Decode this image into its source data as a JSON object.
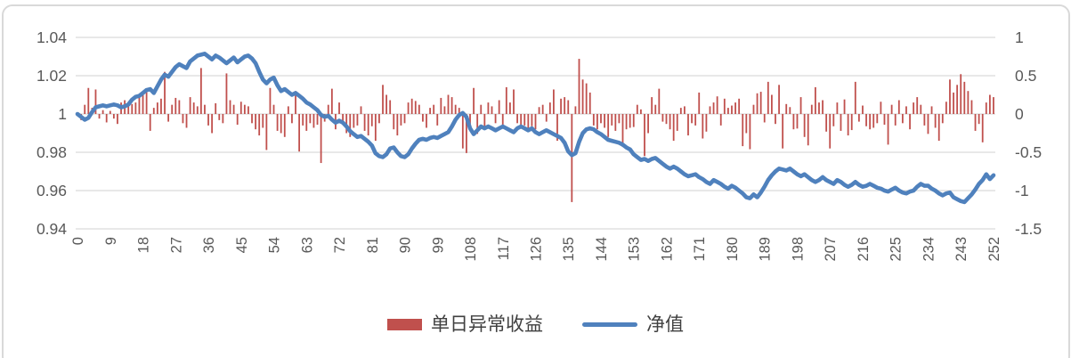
{
  "frame_color": "#d9d9d9",
  "grid_color": "#d9d9d9",
  "axis_text_color": "#595959",
  "chart_data": {
    "type": "combo",
    "title": "",
    "legend_position": "bottom",
    "grid": true,
    "x": {
      "count": 253,
      "tick_step": 9,
      "tick_labels": [
        "0",
        "9",
        "18",
        "27",
        "36",
        "45",
        "54",
        "63",
        "72",
        "81",
        "90",
        "99",
        "108",
        "117",
        "126",
        "135",
        "144",
        "153",
        "162",
        "171",
        "180",
        "189",
        "198",
        "207",
        "216",
        "225",
        "234",
        "243",
        "252"
      ]
    },
    "left_axis": {
      "min": 0.94,
      "max": 1.04,
      "ticks": [
        {
          "label": "1.04",
          "value": 1.04
        },
        {
          "label": "1.02",
          "value": 1.02
        },
        {
          "label": "1",
          "value": 1.0
        },
        {
          "label": "0.98",
          "value": 0.98
        },
        {
          "label": "0.96",
          "value": 0.96
        },
        {
          "label": "0.94",
          "value": 0.94
        }
      ]
    },
    "right_axis": {
      "min": -1.5,
      "max": 1.0,
      "ticks": [
        {
          "label": "1",
          "value": 1.0
        },
        {
          "label": "0.5",
          "value": 0.5
        },
        {
          "label": "0",
          "value": 0.0
        },
        {
          "label": "-0.5",
          "value": -0.5
        },
        {
          "label": "-1",
          "value": -1.0
        },
        {
          "label": "-1.5",
          "value": -1.5
        }
      ]
    },
    "series": [
      {
        "name": "单日异常收益",
        "type": "bar",
        "axis": "right",
        "color": "#C0504D",
        "values": [
          0.02,
          -0.08,
          0.12,
          0.34,
          0.08,
          0.32,
          -0.06,
          0.05,
          -0.11,
          0.04,
          -0.06,
          -0.13,
          0.15,
          0.18,
          0.1,
          0.13,
          0.15,
          0.24,
          0.28,
          0.3,
          -0.22,
          0.08,
          0.15,
          0.2,
          0.55,
          -0.1,
          0.12,
          0.21,
          0.18,
          -0.12,
          -0.18,
          0.22,
          0.15,
          0.1,
          0.6,
          0.12,
          -0.15,
          -0.25,
          0.14,
          -0.08,
          -0.12,
          0.53,
          0.18,
          0.12,
          -0.14,
          0.16,
          0.12,
          0.1,
          -0.12,
          -0.2,
          -0.28,
          -0.18,
          -0.47,
          0.34,
          0.12,
          -0.22,
          -0.25,
          -0.3,
          0.1,
          -0.12,
          0.3,
          -0.49,
          -0.15,
          -0.22,
          -0.12,
          -0.18,
          -0.14,
          -0.64,
          -0.1,
          0.12,
          0.33,
          -0.2,
          0.15,
          -0.12,
          -0.25,
          -0.3,
          -0.18,
          -0.15,
          0.1,
          -0.22,
          -0.28,
          -0.16,
          -0.35,
          -0.12,
          0.38,
          0.25,
          0.18,
          -0.2,
          -0.28,
          -0.15,
          -0.12,
          0.15,
          0.2,
          0.17,
          0.12,
          -0.1,
          -0.18,
          0.08,
          0.12,
          -0.15,
          0.21,
          0.1,
          0.25,
          0.22,
          0.12,
          0.08,
          -0.45,
          -0.51,
          -0.2,
          0.34,
          -0.26,
          0.12,
          -0.2,
          0.15,
          0.1,
          -0.12,
          0.18,
          -0.19,
          0.35,
          0.15,
          0.32,
          -0.12,
          -0.18,
          -0.15,
          -0.2,
          -0.16,
          -0.2,
          0.09,
          0.12,
          -0.1,
          0.15,
          0.32,
          -0.35,
          0.2,
          0.22,
          0.18,
          -1.15,
          0.1,
          0.72,
          0.45,
          0.4,
          0.28,
          -0.15,
          -0.2,
          -0.12,
          -0.18,
          -0.3,
          -0.15,
          -0.22,
          -0.12,
          -0.43,
          -0.2,
          -0.18,
          -0.17,
          0.12,
          0.06,
          -0.55,
          -0.25,
          0.22,
          0.12,
          0.33,
          -0.1,
          -0.13,
          -0.2,
          -0.35,
          -0.22,
          0.08,
          0.1,
          -0.28,
          -0.12,
          -0.15,
          0.28,
          -0.32,
          -0.23,
          0.1,
          0.15,
          0.23,
          -0.15,
          0.2,
          0.08,
          0.11,
          0.15,
          0.2,
          -0.42,
          -0.25,
          -0.46,
          0.12,
          0.27,
          0.29,
          -0.11,
          0.42,
          0.25,
          -0.13,
          0.38,
          -0.45,
          0.13,
          0.09,
          -0.2,
          -0.19,
          0.22,
          -0.3,
          -0.41,
          0.12,
          0.35,
          0.15,
          0.18,
          -0.23,
          -0.45,
          -0.16,
          0.15,
          -0.22,
          0.19,
          -0.28,
          -0.21,
          0.42,
          -0.1,
          0.11,
          -0.16,
          -0.2,
          -0.18,
          -0.12,
          0.16,
          -0.14,
          -0.4,
          0.12,
          -0.15,
          0.18,
          -0.12,
          0.1,
          -0.2,
          0.15,
          0.22,
          0.12,
          -0.15,
          -0.26,
          0.1,
          -0.18,
          -0.35,
          -0.12,
          0.16,
          0.45,
          0.28,
          0.38,
          0.52,
          0.42,
          0.3,
          0.18,
          -0.22,
          -0.13,
          -0.37,
          0.15,
          0.25,
          0.22
        ]
      },
      {
        "name": "净值",
        "type": "line",
        "axis": "left",
        "color": "#4F81BD",
        "values": [
          1.0,
          0.9985,
          0.997,
          0.998,
          1.001,
          1.0035,
          1.004,
          1.0045,
          1.004,
          1.0045,
          1.005,
          1.0045,
          1.0035,
          1.004,
          1.005,
          1.0075,
          1.009,
          1.0095,
          1.011,
          1.0125,
          1.013,
          1.011,
          1.0145,
          1.018,
          1.0205,
          1.0195,
          1.022,
          1.0245,
          1.026,
          1.025,
          1.024,
          1.0275,
          1.029,
          1.0305,
          1.031,
          1.0315,
          1.03,
          1.0285,
          1.0305,
          1.0295,
          1.028,
          1.0265,
          1.028,
          1.0295,
          1.027,
          1.0285,
          1.03,
          1.0305,
          1.029,
          1.0265,
          1.022,
          1.018,
          1.016,
          1.018,
          1.019,
          1.015,
          1.012,
          1.013,
          1.0115,
          1.01,
          1.011,
          1.0095,
          1.008,
          1.006,
          1.005,
          1.0035,
          1.002,
          0.9995,
          0.9985,
          0.999,
          0.997,
          0.9955,
          0.9965,
          0.9955,
          0.9935,
          0.991,
          0.9895,
          0.988,
          0.9885,
          0.987,
          0.9855,
          0.9835,
          0.9795,
          0.978,
          0.9775,
          0.979,
          0.982,
          0.9825,
          0.98,
          0.978,
          0.9775,
          0.979,
          0.982,
          0.9845,
          0.9865,
          0.987,
          0.9865,
          0.9875,
          0.988,
          0.9875,
          0.9885,
          0.9895,
          0.9905,
          0.9935,
          0.997,
          0.9995,
          1.0005,
          0.9985,
          0.9925,
          0.9895,
          0.9915,
          0.9935,
          0.9925,
          0.9935,
          0.9925,
          0.9915,
          0.9925,
          0.9935,
          0.9925,
          0.9915,
          0.9905,
          0.9925,
          0.9935,
          0.9925,
          0.9915,
          0.9925,
          0.9905,
          0.9895,
          0.9905,
          0.9915,
          0.9905,
          0.9895,
          0.9885,
          0.9875,
          0.985,
          0.9805,
          0.9785,
          0.9795,
          0.9855,
          0.99,
          0.992,
          0.9925,
          0.992,
          0.9905,
          0.9895,
          0.988,
          0.9865,
          0.986,
          0.9855,
          0.985,
          0.984,
          0.9825,
          0.9815,
          0.979,
          0.9775,
          0.976,
          0.9765,
          0.9755,
          0.9765,
          0.977,
          0.9755,
          0.974,
          0.9725,
          0.9715,
          0.9725,
          0.9715,
          0.97,
          0.9685,
          0.9675,
          0.968,
          0.9685,
          0.967,
          0.966,
          0.9645,
          0.9635,
          0.9655,
          0.9645,
          0.9635,
          0.962,
          0.961,
          0.9625,
          0.9615,
          0.96,
          0.9585,
          0.9565,
          0.956,
          0.958,
          0.9565,
          0.959,
          0.962,
          0.9655,
          0.968,
          0.97,
          0.9715,
          0.971,
          0.9705,
          0.9715,
          0.97,
          0.9685,
          0.9675,
          0.9685,
          0.967,
          0.9655,
          0.9645,
          0.9655,
          0.967,
          0.9655,
          0.9645,
          0.9635,
          0.9655,
          0.9645,
          0.963,
          0.962,
          0.963,
          0.9645,
          0.963,
          0.962,
          0.9625,
          0.9635,
          0.9625,
          0.9615,
          0.961,
          0.96,
          0.9595,
          0.9605,
          0.9615,
          0.96,
          0.959,
          0.9585,
          0.9595,
          0.96,
          0.962,
          0.9635,
          0.9625,
          0.9625,
          0.961,
          0.96,
          0.9585,
          0.9575,
          0.9585,
          0.959,
          0.9565,
          0.9555,
          0.9545,
          0.954,
          0.956,
          0.958,
          0.9605,
          0.9635,
          0.9655,
          0.9685,
          0.966,
          0.968
        ]
      }
    ]
  }
}
